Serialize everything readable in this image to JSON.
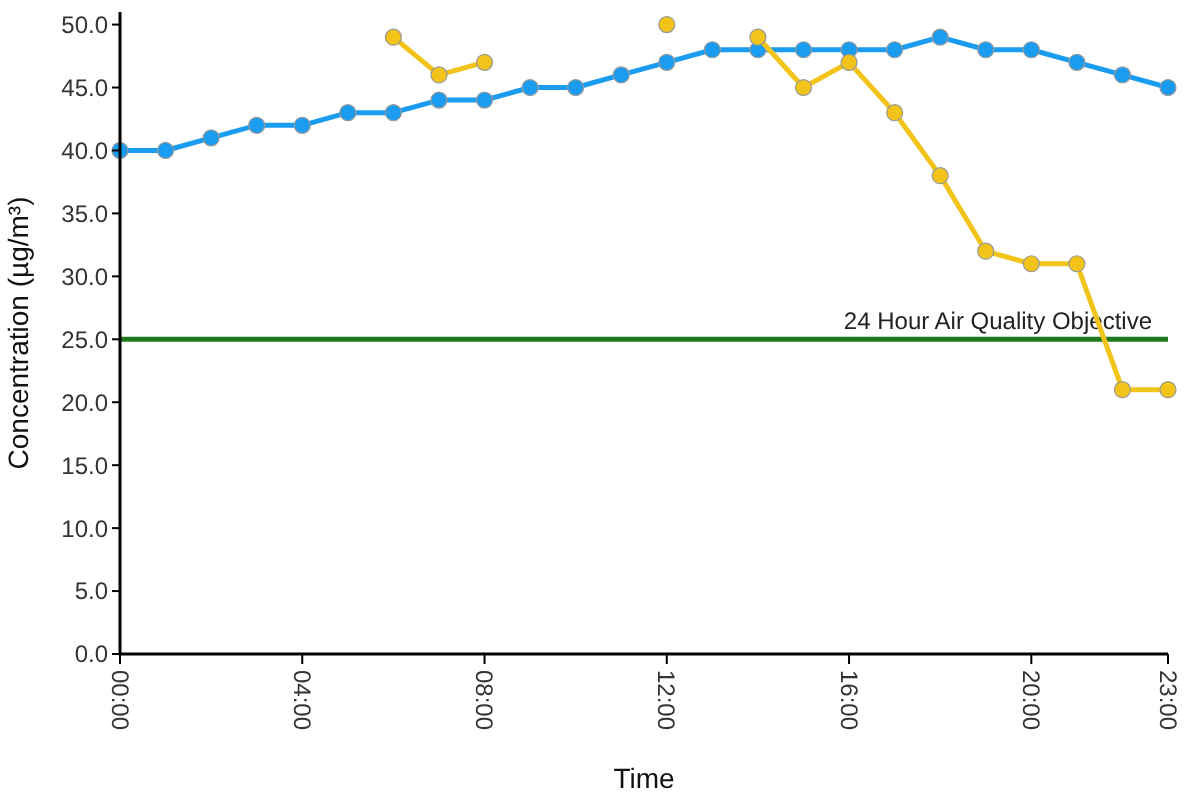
{
  "chart_data": {
    "type": "line",
    "xlabel": "Time",
    "ylabel": "Concentration (µg/m³)",
    "x": [
      0,
      1,
      2,
      3,
      4,
      5,
      6,
      7,
      8,
      9,
      10,
      11,
      12,
      13,
      14,
      15,
      16,
      17,
      18,
      19,
      20,
      21,
      22,
      23
    ],
    "series": [
      {
        "color": "#1a9cf0",
        "values": [
          40,
          40,
          41,
          42,
          42,
          43,
          43,
          44,
          44,
          45,
          45,
          46,
          47,
          48,
          48,
          48,
          48,
          48,
          49,
          48,
          48,
          47,
          46,
          45
        ]
      },
      {
        "color": "#f2c419",
        "values": [
          null,
          null,
          null,
          null,
          null,
          null,
          49,
          46,
          47,
          null,
          null,
          null,
          50,
          null,
          49,
          45,
          47,
          43,
          38,
          32,
          31,
          31,
          21,
          21
        ]
      }
    ],
    "xlim": [
      0,
      23
    ],
    "xticks": [
      {
        "value": 0,
        "label": "00:00"
      },
      {
        "value": 4,
        "label": "04:00"
      },
      {
        "value": 8,
        "label": "08:00"
      },
      {
        "value": 12,
        "label": "12:00"
      },
      {
        "value": 16,
        "label": "16:00"
      },
      {
        "value": 20,
        "label": "20:00"
      },
      {
        "value": 23,
        "label": "23:00"
      }
    ],
    "ylim": [
      0,
      51
    ],
    "yticks": [
      {
        "value": 0,
        "label": "0.0"
      },
      {
        "value": 5,
        "label": "5.0"
      },
      {
        "value": 10,
        "label": "10.0"
      },
      {
        "value": 15,
        "label": "15.0"
      },
      {
        "value": 20,
        "label": "20.0"
      },
      {
        "value": 25,
        "label": "25.0"
      },
      {
        "value": 30,
        "label": "30.0"
      },
      {
        "value": 35,
        "label": "35.0"
      },
      {
        "value": 40,
        "label": "40.0"
      },
      {
        "value": 45,
        "label": "45.0"
      },
      {
        "value": 50,
        "label": "50.0"
      }
    ],
    "ref_lines": [
      {
        "axis": "y",
        "value": 25,
        "label": "24 Hour Air Quality Objective",
        "color": "#1f7a1f"
      }
    ],
    "marker": "circle",
    "line_style": "solid",
    "grid": false
  }
}
